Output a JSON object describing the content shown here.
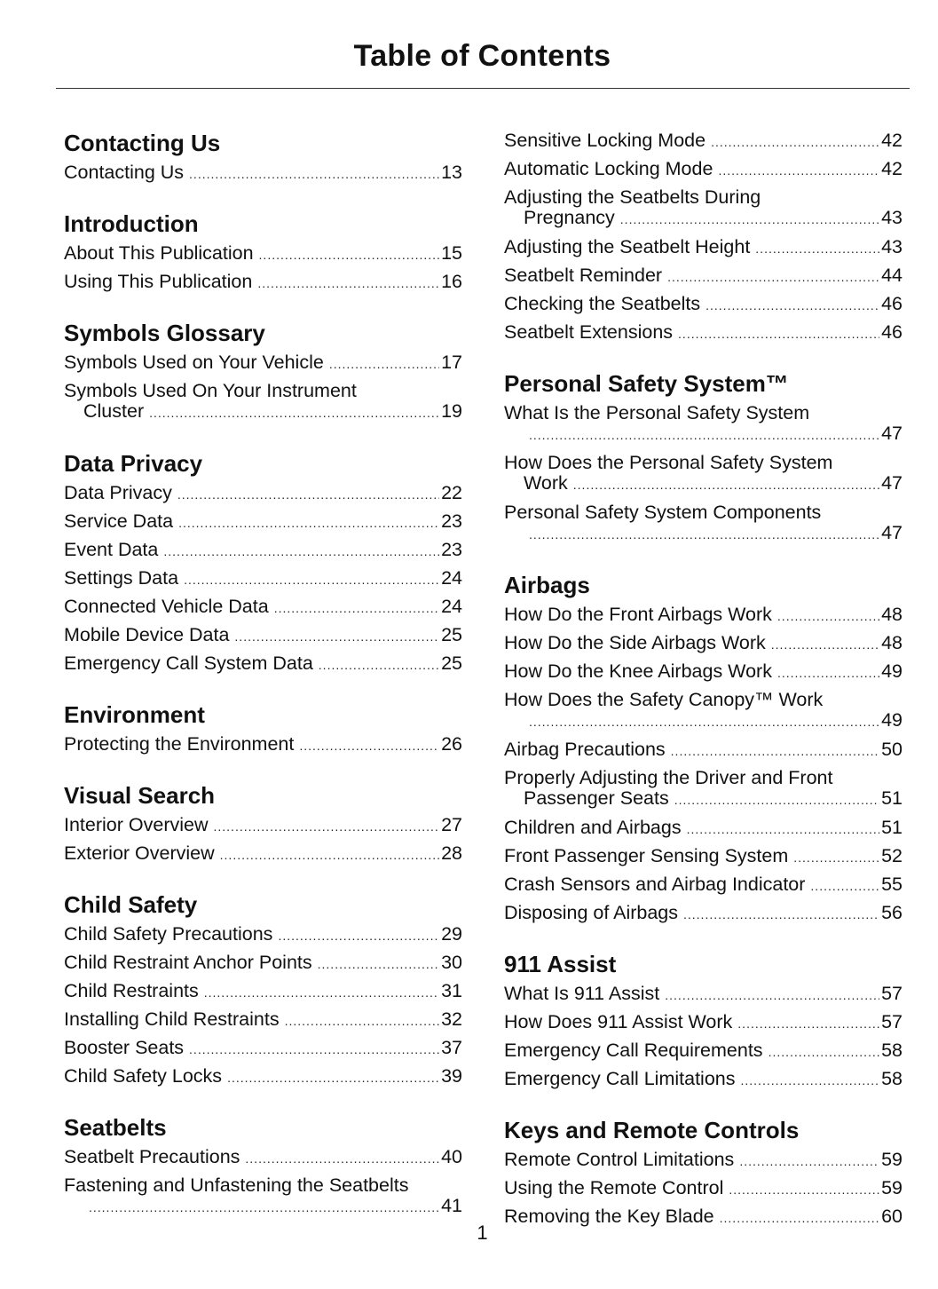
{
  "title": "Table of Contents",
  "page_number": "1",
  "columns": [
    [
      {
        "heading": "Contacting Us",
        "entries": [
          {
            "title": "Contacting Us",
            "page": "13"
          }
        ]
      },
      {
        "heading": "Introduction",
        "entries": [
          {
            "title": "About This Publication",
            "page": "15"
          },
          {
            "title": "Using This Publication",
            "page": "16"
          }
        ]
      },
      {
        "heading": "Symbols Glossary",
        "entries": [
          {
            "title": "Symbols Used on Your Vehicle",
            "page": "17"
          },
          {
            "title": "Symbols Used On Your Instrument",
            "title_cont": "Cluster",
            "page": "19"
          }
        ]
      },
      {
        "heading": "Data Privacy",
        "entries": [
          {
            "title": "Data Privacy",
            "page": "22"
          },
          {
            "title": "Service Data",
            "page": "23"
          },
          {
            "title": "Event Data",
            "page": "23"
          },
          {
            "title": "Settings Data",
            "page": "24"
          },
          {
            "title": "Connected Vehicle Data",
            "page": "24"
          },
          {
            "title": "Mobile Device Data",
            "page": "25"
          },
          {
            "title": "Emergency Call System Data",
            "page": "25"
          }
        ]
      },
      {
        "heading": "Environment",
        "entries": [
          {
            "title": "Protecting the Environment",
            "page": "26"
          }
        ]
      },
      {
        "heading": "Visual Search",
        "entries": [
          {
            "title": "Interior Overview",
            "page": "27"
          },
          {
            "title": "Exterior Overview",
            "page": "28"
          }
        ]
      },
      {
        "heading": "Child Safety",
        "entries": [
          {
            "title": "Child Safety Precautions",
            "page": "29"
          },
          {
            "title": "Child Restraint Anchor Points",
            "page": "30"
          },
          {
            "title": "Child Restraints",
            "page": "31"
          },
          {
            "title": "Installing Child Restraints",
            "page": "32"
          },
          {
            "title": "Booster Seats",
            "page": "37"
          },
          {
            "title": "Child Safety Locks",
            "page": "39"
          }
        ]
      },
      {
        "heading": "Seatbelts",
        "entries": [
          {
            "title": "Seatbelt Precautions",
            "page": "40"
          },
          {
            "title": "Fastening and Unfastening the Seatbelts",
            "title_cont": "",
            "page": "41"
          }
        ]
      }
    ],
    [
      {
        "heading": "",
        "entries": [
          {
            "title": "Sensitive Locking Mode",
            "page": "42"
          },
          {
            "title": "Automatic Locking Mode",
            "page": "42"
          },
          {
            "title": "Adjusting the Seatbelts During",
            "title_cont": "Pregnancy",
            "page": "43"
          },
          {
            "title": "Adjusting the Seatbelt Height",
            "page": "43"
          },
          {
            "title": "Seatbelt Reminder",
            "page": "44"
          },
          {
            "title": "Checking the Seatbelts",
            "page": "46"
          },
          {
            "title": "Seatbelt Extensions",
            "page": "46"
          }
        ]
      },
      {
        "heading": "Personal Safety System™",
        "entries": [
          {
            "title": "What Is the Personal Safety System",
            "title_cont": "",
            "page": "47"
          },
          {
            "title": "How Does the Personal Safety System",
            "title_cont": "Work",
            "page": "47"
          },
          {
            "title": "Personal Safety System Components",
            "title_cont": "",
            "page": "47"
          }
        ]
      },
      {
        "heading": "Airbags",
        "entries": [
          {
            "title": "How Do the Front Airbags Work",
            "page": "48"
          },
          {
            "title": "How Do the Side Airbags Work",
            "page": "48"
          },
          {
            "title": "How Do the Knee Airbags Work",
            "page": "49"
          },
          {
            "title": "How Does the Safety Canopy™ Work",
            "title_cont": "",
            "page": "49"
          },
          {
            "title": "Airbag Precautions",
            "page": "50"
          },
          {
            "title": "Properly Adjusting the Driver and Front",
            "title_cont": "Passenger Seats",
            "page": "51"
          },
          {
            "title": "Children and Airbags",
            "page": "51"
          },
          {
            "title": "Front Passenger Sensing System",
            "page": "52"
          },
          {
            "title": "Crash Sensors and Airbag Indicator",
            "page": "55"
          },
          {
            "title": "Disposing of Airbags",
            "page": "56"
          }
        ]
      },
      {
        "heading": "911 Assist",
        "entries": [
          {
            "title": "What Is 911 Assist",
            "page": "57"
          },
          {
            "title": "How Does 911 Assist Work",
            "page": "57"
          },
          {
            "title": "Emergency Call Requirements",
            "page": "58"
          },
          {
            "title": "Emergency Call Limitations",
            "page": "58"
          }
        ]
      },
      {
        "heading": "Keys and Remote Controls",
        "entries": [
          {
            "title": "Remote Control Limitations",
            "page": "59"
          },
          {
            "title": "Using the Remote Control",
            "page": "59"
          },
          {
            "title": "Removing the Key Blade",
            "page": "60"
          }
        ]
      }
    ]
  ]
}
